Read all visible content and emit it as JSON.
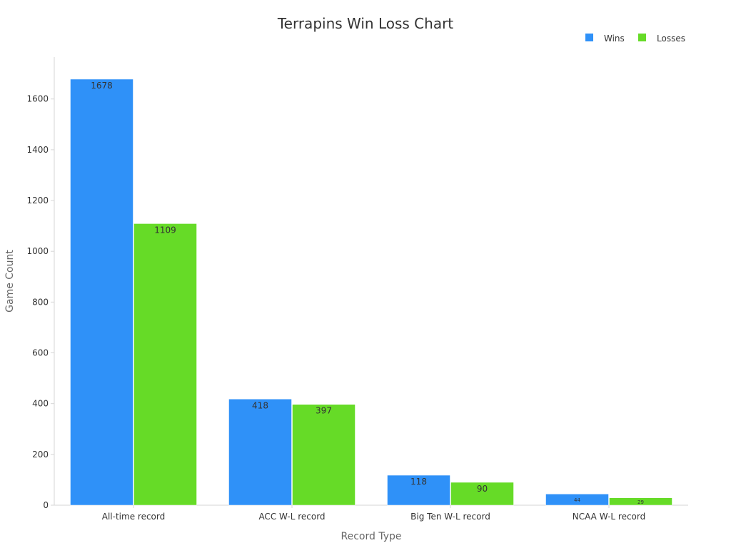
{
  "chart_data": {
    "type": "bar",
    "title": "Terrapins Win Loss Chart",
    "xlabel": "Record Type",
    "ylabel": "Game Count",
    "categories": [
      "All-time record",
      "ACC W-L record",
      "Big Ten W-L record",
      "NCAA W-L record"
    ],
    "series": [
      {
        "name": "Wins",
        "color": "#2f91f8",
        "values": [
          1678,
          418,
          118,
          44
        ]
      },
      {
        "name": "Losses",
        "color": "#66db27",
        "values": [
          1109,
          397,
          90,
          29
        ]
      }
    ],
    "yticks": [
      0,
      200,
      400,
      600,
      800,
      1000,
      1200,
      1400,
      1600
    ],
    "ylim": [
      0,
      1765
    ],
    "grid": false,
    "legend_position": "top-right"
  }
}
